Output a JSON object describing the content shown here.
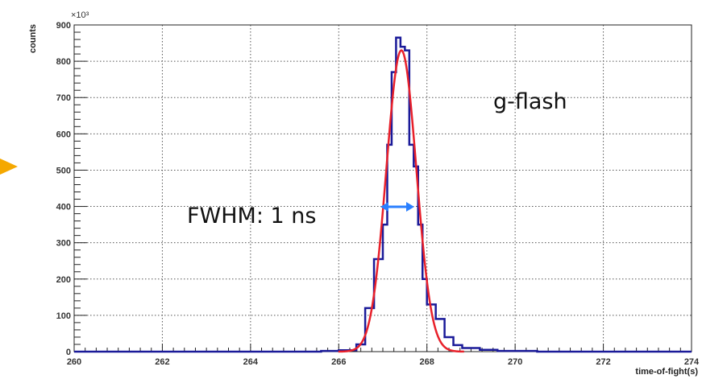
{
  "chart_data": {
    "type": "histogram",
    "xlabel": "time-of-fight(s)",
    "ylabel": "counts",
    "y_multiplier": "×10³",
    "xlim": [
      260,
      274
    ],
    "ylim": [
      0,
      900
    ],
    "xticks": [
      "260",
      "262",
      "264",
      "266",
      "268",
      "270",
      "272",
      "274"
    ],
    "yticks": [
      "0",
      "100",
      "200",
      "300",
      "400",
      "500",
      "600",
      "700",
      "800",
      "900"
    ],
    "grid": true,
    "histogram": {
      "color": "#1a1a99",
      "edges": [
        265.6,
        266.0,
        266.4,
        266.6,
        266.8,
        267.0,
        267.1,
        267.2,
        267.3,
        267.4,
        267.5,
        267.6,
        267.7,
        267.8,
        267.9,
        268.0,
        268.2,
        268.4,
        268.6,
        268.8,
        269.2,
        269.6,
        270.5
      ],
      "values": [
        2,
        4,
        20,
        120,
        255,
        350,
        570,
        770,
        865,
        840,
        830,
        570,
        510,
        350,
        200,
        130,
        90,
        40,
        18,
        10,
        5,
        2
      ]
    },
    "fit": {
      "type": "gaussian",
      "color": "#e8202a",
      "amplitude": 830,
      "mean": 267.42,
      "sigma": 0.34
    },
    "annotations": [
      {
        "text": "g-flash"
      },
      {
        "text": "FWHM: 1 ns"
      }
    ],
    "fwhm_arrow_color": "#2a7fff",
    "pointer_arrow_color": "#f5a800"
  }
}
